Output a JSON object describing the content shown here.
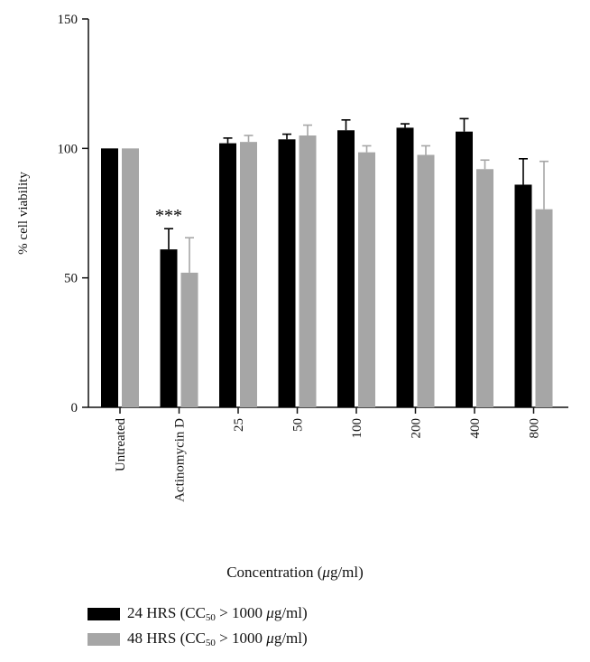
{
  "chart_data": {
    "type": "bar",
    "title": "",
    "xlabel_prefix": "Concentration (",
    "xlabel_mu": "μ",
    "xlabel_suffix": "g/ml)",
    "ylabel": "% cell viability",
    "ylim": [
      0,
      150
    ],
    "yticks": [
      "0",
      "50",
      "100",
      "150"
    ],
    "categories": [
      "Untreated",
      "Actinomycin D",
      "25",
      "50",
      "100",
      "200",
      "400",
      "800"
    ],
    "series": [
      {
        "name": "24 HRS (CC50 > 1000 μg/ml)",
        "color": "#000000",
        "values": [
          100,
          61,
          102,
          103.5,
          107,
          108,
          106.5,
          86
        ],
        "errors": [
          0,
          8,
          2,
          2,
          4,
          1.5,
          5,
          10
        ]
      },
      {
        "name": "48 HRS (CC50 > 1000 μg/ml)",
        "color": "#a6a6a6",
        "values": [
          100,
          52,
          102.5,
          105,
          98.5,
          97.5,
          92,
          76.5
        ],
        "errors": [
          0,
          13.5,
          2.5,
          4,
          2.5,
          3.5,
          3.5,
          18.5
        ]
      }
    ],
    "annotations": [
      {
        "category": "Actinomycin D",
        "text": "***"
      }
    ],
    "grid": false,
    "legend_position": "bottom-left"
  },
  "legend": {
    "items": [
      {
        "prefix": "24 HRS (CC",
        "sub": "50",
        "suffix_a": " > 1000 ",
        "mu": "μ",
        "suffix_b": "g/ml)",
        "color": "#000000"
      },
      {
        "prefix": "48 HRS (CC",
        "sub": "50",
        "suffix_a": " > 1000 ",
        "mu": "μ",
        "suffix_b": "g/ml)",
        "color": "#a6a6a6"
      }
    ]
  }
}
